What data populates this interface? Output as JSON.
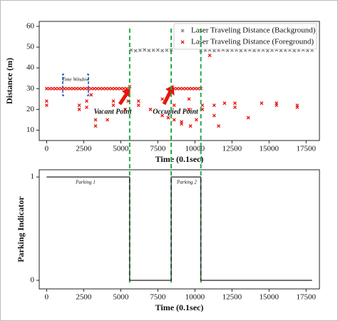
{
  "chart_data": [
    {
      "type": "scatter",
      "xlabel": "Time (0.1sec)",
      "ylabel": "Distance (m)",
      "xlim": [
        -500,
        18400
      ],
      "ylim": [
        5,
        62.4
      ],
      "xticks": [
        0,
        2500,
        5000,
        7500,
        10000,
        12500,
        15000,
        17500
      ],
      "yticks": [
        10,
        20,
        30,
        40,
        50,
        60
      ],
      "legend": "upper right",
      "vlines": [
        5600,
        8400,
        10400
      ],
      "vline_color": "#22aa44",
      "annotations": [
        "Time Window",
        "Vacant Point",
        "Occupied Point"
      ],
      "series": [
        {
          "name": "Laser Traveling Distance (Background)",
          "color": "#808080",
          "x": [
            5700,
            6000,
            6300,
            6600,
            6900,
            7200,
            7500,
            7800,
            8100,
            8400,
            10400,
            10700,
            11000,
            11300,
            11600,
            11900,
            12200,
            12500,
            12800,
            13100,
            13400,
            13700,
            14000,
            14300,
            14600,
            14900,
            15200,
            15500,
            15800,
            16100,
            16400,
            16700,
            17000,
            17300,
            17600,
            17900
          ],
          "values": [
            48.6,
            48.3,
            48.5,
            48.7,
            48.4,
            48.5,
            48.6,
            48.3,
            48.5,
            48.7,
            48.4,
            48.5,
            48.6,
            48.3,
            48.5,
            48.7,
            48.4,
            48.5,
            48.6,
            48.3,
            48.5,
            48.7,
            48.4,
            48.5,
            48.6,
            48.3,
            48.5,
            48.7,
            48.4,
            48.5,
            48.6,
            48.3,
            48.5,
            48.7,
            48.4,
            48.5
          ]
        },
        {
          "name": "Laser Traveling Distance (Foreground)",
          "color": "#e8140c",
          "x": [
            0,
            200,
            400,
            600,
            800,
            1000,
            1200,
            1400,
            1600,
            1800,
            2000,
            2200,
            2400,
            2600,
            2800,
            3000,
            3200,
            3400,
            3600,
            3800,
            4000,
            4200,
            4400,
            4600,
            4800,
            5000,
            5200,
            5400,
            5600,
            8400,
            8600,
            8800,
            9000,
            9200,
            9400,
            9600,
            9800,
            10000,
            10200,
            10400,
            0,
            0,
            2200,
            2200,
            2700,
            2700,
            3000,
            3300,
            3300,
            4100,
            4500,
            4500,
            5300,
            5500,
            6200,
            6200,
            7000,
            7800,
            7800,
            8200,
            8600,
            8600,
            9100,
            9100,
            9600,
            9600,
            9700,
            10100,
            10500,
            10500,
            11000,
            11300,
            11300,
            11600,
            12000,
            12700,
            12700,
            13600,
            14500,
            15500,
            15500,
            16900,
            16900
          ],
          "values": [
            30,
            30,
            30,
            30,
            30,
            30,
            30,
            30,
            30,
            30,
            30,
            30,
            30,
            30,
            30,
            30,
            30,
            30,
            30,
            30,
            30,
            30,
            30,
            30,
            30,
            30,
            30,
            30,
            31,
            30,
            30,
            30,
            30,
            30,
            30,
            30,
            30,
            30,
            30,
            30,
            22,
            24,
            20,
            22,
            24,
            21,
            27,
            15,
            12,
            15,
            22,
            24,
            20,
            24,
            22,
            24,
            20,
            17,
            25,
            16,
            22,
            15,
            14,
            13,
            20,
            25,
            12,
            15,
            20,
            22,
            46,
            22,
            17,
            12,
            23,
            21,
            23,
            16,
            23,
            23,
            22,
            22,
            21
          ]
        }
      ]
    },
    {
      "type": "line",
      "xlabel": "Time (0.1sec)",
      "ylabel": "Parking Indicator",
      "xlim": [
        -500,
        18400
      ],
      "ylim": [
        -0.083,
        1.07
      ],
      "xticks": [
        0,
        2500,
        5000,
        7500,
        10000,
        12500,
        15000,
        17500
      ],
      "yticks": [
        0,
        1
      ],
      "annotations": [
        "Parking 1",
        "Parking 2"
      ],
      "series": [
        {
          "color": "#222222",
          "x": [
            0,
            5600,
            5600,
            8400,
            8400,
            10400,
            10400,
            17900
          ],
          "values": [
            1,
            1,
            0,
            0,
            1,
            1,
            0,
            0
          ]
        }
      ]
    }
  ]
}
